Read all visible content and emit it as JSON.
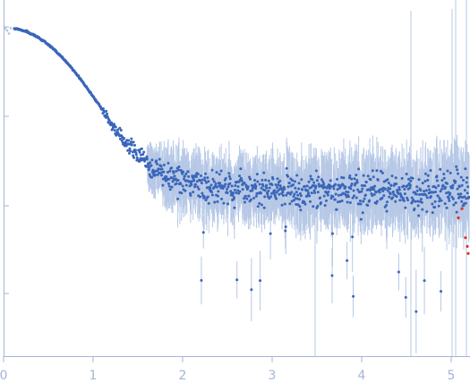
{
  "chart_data": {
    "type": "scatter",
    "title": "",
    "xlabel": "",
    "ylabel": "",
    "x_ticks": [
      "0",
      "1",
      "2",
      "3",
      "4",
      "5"
    ],
    "xlim": [
      0,
      5.2
    ],
    "y_scale": "log",
    "y_tick_labels": [],
    "grid": false,
    "legend": "none",
    "colors": {
      "points": "#3a66b8",
      "errorbars": "#b6c8e6",
      "outliers": "#e0302a",
      "axis": "#a6b4d6"
    },
    "series": [
      {
        "name": "",
        "kind": "main",
        "x": [
          0.05,
          0.15,
          0.25,
          0.35,
          0.45,
          0.55,
          0.65,
          0.75,
          0.85,
          0.95,
          1.05,
          1.15,
          1.25,
          1.35,
          1.45,
          1.55,
          1.65,
          1.75,
          1.85,
          1.95,
          2.05,
          2.15,
          2.25,
          2.35,
          2.45,
          2.55,
          2.65,
          2.75,
          2.85,
          2.95,
          3.05,
          3.15,
          3.25,
          3.35,
          3.45,
          3.55,
          3.65,
          3.75,
          3.85,
          3.95,
          4.05,
          4.15,
          4.25,
          4.35,
          4.45,
          4.55,
          4.65,
          4.75,
          4.85,
          4.95,
          5.05,
          5.15
        ],
        "y": [
          1.0,
          0.97,
          0.91,
          0.82,
          0.71,
          0.59,
          0.47,
          0.365,
          0.275,
          0.2,
          0.145,
          0.103,
          0.074,
          0.055,
          0.042,
          0.034,
          0.028,
          0.024,
          0.021,
          0.0195,
          0.0185,
          0.0178,
          0.0172,
          0.0168,
          0.0165,
          0.0162,
          0.016,
          0.0158,
          0.0157,
          0.0155,
          0.0154,
          0.0153,
          0.0152,
          0.0151,
          0.015,
          0.015,
          0.0149,
          0.0149,
          0.0148,
          0.0148,
          0.0147,
          0.0147,
          0.0147,
          0.0146,
          0.0146,
          0.0146,
          0.0146,
          0.0145,
          0.0145,
          0.0145,
          0.0145,
          0.0145
        ]
      },
      {
        "name": "",
        "kind": "outliers",
        "x": [
          5.08,
          5.12,
          5.16,
          5.18,
          5.19
        ],
        "y": [
          0.0075,
          0.0095,
          0.0045,
          0.0036,
          0.003
        ]
      }
    ]
  }
}
